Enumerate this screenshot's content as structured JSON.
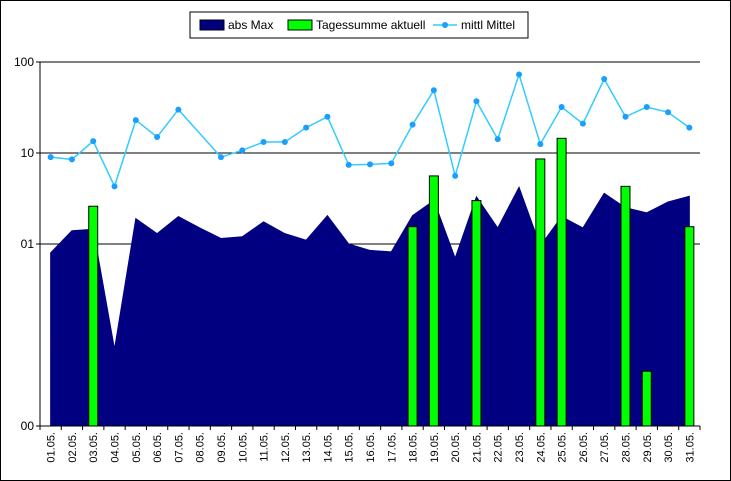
{
  "chart_data": {
    "type": "bar",
    "y_scale": "log",
    "ylim": [
      0.01,
      100
    ],
    "yticks": [
      {
        "value": 100,
        "label": "100"
      },
      {
        "value": 10,
        "label": "10"
      },
      {
        "value": 1,
        "label": "01"
      },
      {
        "value": 0.01,
        "label": "00"
      }
    ],
    "grid": true,
    "legend_position": "top-center",
    "categories": [
      "01.05.",
      "02.05.",
      "03.05.",
      "04.05.",
      "05.05.",
      "06.05.",
      "07.05.",
      "08.05.",
      "09.05.",
      "10.05.",
      "11.05.",
      "12.05.",
      "13.05.",
      "14.05.",
      "15.05.",
      "16.05.",
      "17.05.",
      "18.05.",
      "19.05.",
      "20.05.",
      "21.05.",
      "22.05.",
      "23.05.",
      "24.05.",
      "25.05.",
      "26.05.",
      "27.05.",
      "28.05.",
      "29.05.",
      "30.05.",
      "31.05."
    ],
    "series": [
      {
        "name": "abs Max",
        "kind": "area",
        "color": "#000080",
        "values": [
          0.8,
          1.4,
          1.45,
          0.07,
          1.9,
          1.3,
          2.0,
          1.5,
          1.15,
          1.2,
          1.75,
          1.3,
          1.1,
          2.05,
          1.0,
          0.85,
          0.82,
          2.05,
          3.0,
          0.7,
          3.3,
          1.5,
          4.2,
          0.95,
          2.0,
          1.5,
          3.6,
          2.5,
          2.2,
          2.9,
          3.35
        ]
      },
      {
        "name": "Tagessumme aktuell",
        "kind": "bar",
        "color": "#00ff00",
        "values": [
          null,
          null,
          2.6,
          null,
          null,
          null,
          null,
          null,
          null,
          null,
          null,
          null,
          null,
          null,
          null,
          null,
          null,
          1.55,
          5.6,
          null,
          3.0,
          null,
          null,
          8.6,
          14.5,
          null,
          null,
          4.3,
          0.04,
          null,
          1.55
        ]
      },
      {
        "name": "mittl Mittel",
        "kind": "line",
        "color": "#33ccff",
        "values": [
          9.0,
          8.5,
          13.5,
          4.3,
          23.0,
          15.0,
          30.0,
          null,
          9.0,
          10.7,
          13.2,
          13.2,
          19.0,
          25.0,
          7.4,
          7.5,
          7.7,
          20.5,
          49.0,
          5.6,
          37.0,
          14.2,
          73.0,
          12.5,
          32.0,
          21.0,
          65.0,
          25.0,
          32.0,
          28.0,
          19.0
        ]
      }
    ]
  }
}
